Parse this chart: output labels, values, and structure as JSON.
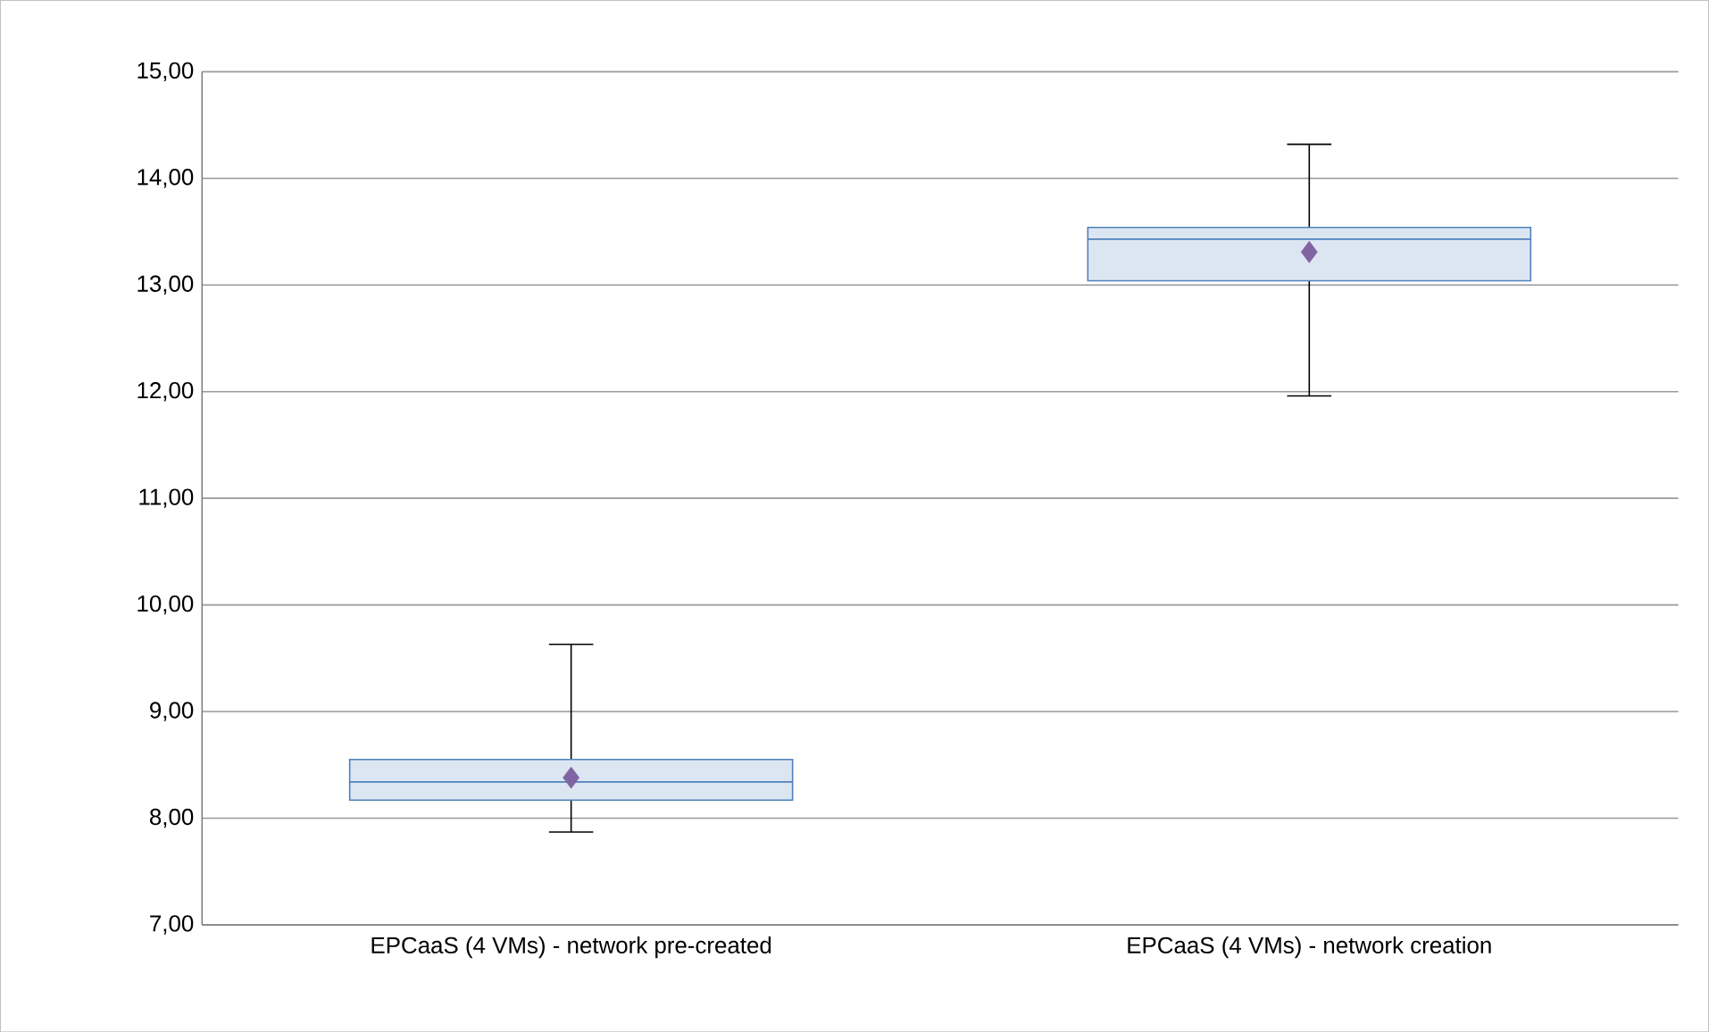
{
  "chart_data": {
    "type": "box",
    "categories": [
      "EPCaaS (4 VMs) - network pre-created",
      "EPCaaS (4 VMs) - network creation"
    ],
    "boxes": [
      {
        "low": 7.87,
        "q1": 8.17,
        "median": 8.34,
        "q3": 8.55,
        "high": 9.63,
        "mean": 8.38
      },
      {
        "low": 11.96,
        "q1": 13.04,
        "median": 13.43,
        "q3": 13.54,
        "high": 14.32,
        "mean": 13.31
      }
    ],
    "color": "#4f81bd",
    "marker": "diamond",
    "grid": "y",
    "ylim": [
      7,
      15
    ],
    "yticks": [
      {
        "value": 7,
        "label": "7,00"
      },
      {
        "value": 8,
        "label": "8,00"
      },
      {
        "value": 9,
        "label": "9,00"
      },
      {
        "value": 10,
        "label": "10,00"
      },
      {
        "value": 11,
        "label": "11,00"
      },
      {
        "value": 12,
        "label": "12,00"
      },
      {
        "value": 13,
        "label": "13,00"
      },
      {
        "value": 14,
        "label": "14,00"
      },
      {
        "value": 15,
        "label": "15,00"
      }
    ]
  }
}
